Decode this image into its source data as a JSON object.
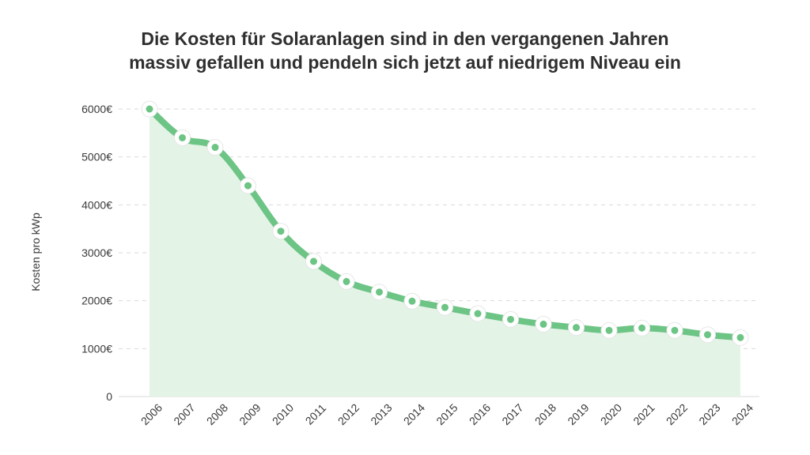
{
  "title_lines": [
    "Die Kosten für Solaranlagen sind in den vergangenen Jahren",
    "massiv gefallen und pendeln sich jetzt auf niedrigem Niveau ein"
  ],
  "chart_data": {
    "type": "area",
    "title": "Die Kosten für Solaranlagen sind in den vergangenen Jahren massiv gefallen und pendeln sich jetzt auf niedrigem Niveau ein",
    "ylabel": "Kosten pro kWp",
    "xlabel": "",
    "categories": [
      "2006",
      "2007",
      "2008",
      "2009",
      "2010",
      "2011",
      "2012",
      "2013",
      "2014",
      "2015",
      "2016",
      "2017",
      "2018",
      "2019",
      "2020",
      "2021",
      "2022",
      "2023",
      "2024"
    ],
    "values": [
      6000,
      5400,
      5200,
      4400,
      3450,
      2820,
      2400,
      2180,
      1990,
      1860,
      1730,
      1610,
      1510,
      1440,
      1380,
      1430,
      1380,
      1290,
      1230
    ],
    "y_ticks": [
      "0",
      "1000€",
      "2000€",
      "3000€",
      "4000€",
      "5000€",
      "6000€"
    ],
    "y_tick_values": [
      0,
      1000,
      2000,
      3000,
      4000,
      5000,
      6000
    ],
    "ylim": [
      0,
      6000
    ],
    "grid": true,
    "colors": {
      "line": "#6cc485",
      "fill": "#e3f3e6",
      "marker_fill": "#6cc485",
      "marker_ring": "#ffffff",
      "grid": "#d9d9d9"
    }
  }
}
